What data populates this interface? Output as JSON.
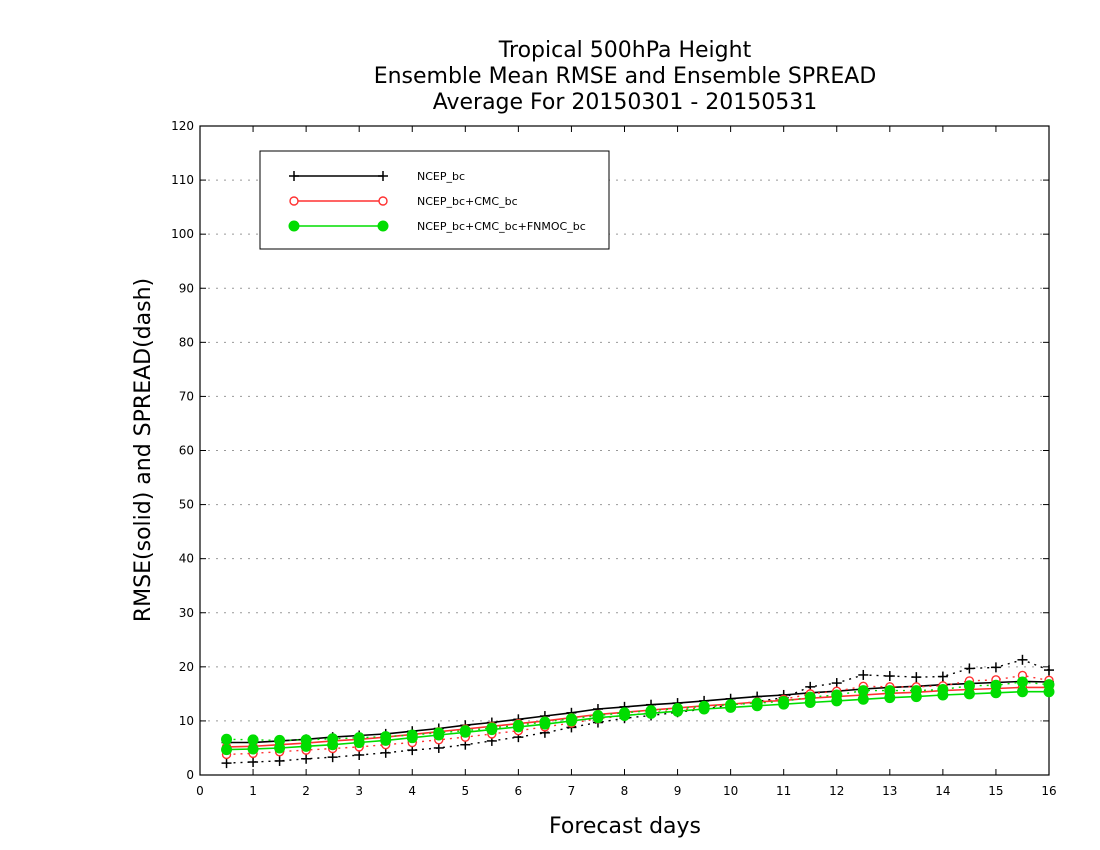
{
  "chart_data": {
    "type": "line",
    "title": [
      "Tropical 500hPa Height",
      "Ensemble Mean RMSE and Ensemble SPREAD",
      "Average For 20150301 - 20150531"
    ],
    "xlabel": "Forecast days",
    "ylabel": "RMSE(solid) and SPREAD(dash)",
    "xlim": [
      0,
      16
    ],
    "ylim": [
      0,
      120
    ],
    "xticks": [
      "0",
      "1",
      "2",
      "3",
      "4",
      "5",
      "6",
      "7",
      "8",
      "9",
      "10",
      "11",
      "12",
      "13",
      "14",
      "15",
      "16"
    ],
    "yticks": [
      "0",
      "10",
      "20",
      "30",
      "40",
      "50",
      "60",
      "70",
      "80",
      "90",
      "100",
      "110",
      "120"
    ],
    "grid": "horizontal dotted",
    "legend_position": "top-left",
    "x": [
      0.5,
      1,
      1.5,
      2,
      2.5,
      3,
      3.5,
      4,
      4.5,
      5,
      5.5,
      6,
      6.5,
      7,
      7.5,
      8,
      8.5,
      9,
      9.5,
      10,
      10.5,
      11,
      11.5,
      12,
      12.5,
      13,
      13.5,
      14,
      14.5,
      15,
      15.5,
      16
    ],
    "series": [
      {
        "name": "NCEP_bc",
        "color": "#000000",
        "marker": "plus",
        "rmse": [
          6.0,
          6.0,
          6.3,
          6.6,
          7.0,
          7.3,
          7.6,
          8.1,
          8.6,
          9.2,
          9.7,
          10.3,
          10.9,
          11.5,
          12.2,
          12.6,
          13.0,
          13.3,
          13.7,
          14.1,
          14.5,
          14.8,
          15.2,
          15.5,
          15.9,
          16.2,
          16.4,
          16.7,
          16.9,
          17.1,
          17.3,
          17.2
        ],
        "spread": [
          2.2,
          2.4,
          2.6,
          3.0,
          3.3,
          3.7,
          4.1,
          4.6,
          5.0,
          5.6,
          6.3,
          7.0,
          7.8,
          8.8,
          9.7,
          10.5,
          11.0,
          11.6,
          12.2,
          12.9,
          13.6,
          14.3,
          16.3,
          17.0,
          18.5,
          18.3,
          18.1,
          18.2,
          19.7,
          19.9,
          21.3,
          19.4
        ]
      },
      {
        "name": "NCEP_bc+CMC_bc",
        "color": "#ff3030",
        "marker": "open-circle",
        "rmse": [
          5.2,
          5.3,
          5.6,
          5.9,
          6.3,
          6.6,
          7.0,
          7.5,
          8.0,
          8.5,
          9.0,
          9.5,
          10.0,
          10.6,
          11.2,
          11.6,
          12.0,
          12.4,
          12.8,
          13.1,
          13.5,
          13.8,
          14.2,
          14.5,
          14.8,
          15.1,
          15.3,
          15.6,
          15.8,
          16.0,
          16.2,
          16.2
        ],
        "spread": [
          3.8,
          4.0,
          4.3,
          4.6,
          4.9,
          5.2,
          5.6,
          6.0,
          6.5,
          7.0,
          7.6,
          8.2,
          8.9,
          9.6,
          10.4,
          11.0,
          11.5,
          12.0,
          12.5,
          13.0,
          13.5,
          14.0,
          15.0,
          15.5,
          16.4,
          16.3,
          16.3,
          16.5,
          17.4,
          17.6,
          18.4,
          17.5
        ]
      },
      {
        "name": "NCEP_bc+CMC_bc+FNMOC_bc",
        "color": "#00dd00",
        "marker": "filled-circle",
        "rmse": [
          4.7,
          4.8,
          5.0,
          5.3,
          5.6,
          6.0,
          6.4,
          6.9,
          7.4,
          7.9,
          8.4,
          8.9,
          9.4,
          10.0,
          10.6,
          11.0,
          11.4,
          11.8,
          12.2,
          12.5,
          12.8,
          13.1,
          13.4,
          13.7,
          14.0,
          14.3,
          14.5,
          14.8,
          15.0,
          15.2,
          15.4,
          15.4
        ],
        "spread": [
          6.6,
          6.5,
          6.4,
          6.5,
          6.7,
          6.9,
          7.1,
          7.4,
          7.8,
          8.2,
          8.7,
          9.2,
          9.8,
          10.4,
          11.0,
          11.5,
          11.9,
          12.3,
          12.7,
          13.0,
          13.3,
          13.6,
          14.4,
          14.8,
          15.6,
          15.6,
          15.6,
          15.8,
          16.5,
          16.6,
          17.2,
          16.7
        ]
      }
    ]
  }
}
